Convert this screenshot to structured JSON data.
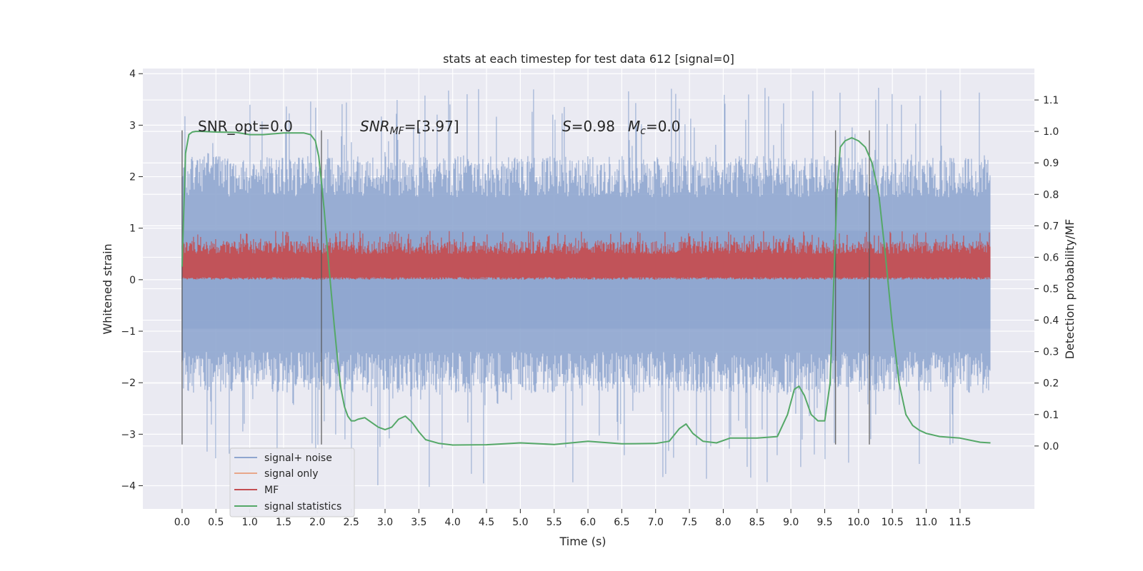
{
  "chart_data": {
    "type": "line",
    "title": "stats at each timestep for test data 612 [signal=0]",
    "xlabel": "Time (s)",
    "ylabel": "Whitened strain",
    "y2label": "Detection probability/MF",
    "xlim": [
      -0.58,
      12.6
    ],
    "ylim": [
      -4.45,
      4.1
    ],
    "y2lim": [
      -0.2,
      1.2
    ],
    "xticks": [
      0.0,
      0.5,
      1.0,
      1.5,
      2.0,
      2.5,
      3.0,
      3.5,
      4.0,
      4.5,
      5.0,
      5.5,
      6.0,
      6.5,
      7.0,
      7.5,
      8.0,
      8.5,
      9.0,
      9.5,
      10.0,
      10.5,
      11.0,
      11.5
    ],
    "xtick_labels": [
      "0.0",
      "0.5",
      "1.0",
      "1.5",
      "2.0",
      "2.5",
      "3.0",
      "3.5",
      "4.0",
      "4.5",
      "5.0",
      "5.5",
      "6.0",
      "6.5",
      "7.0",
      "7.5",
      "8.0",
      "8.5",
      "9.0",
      "9.5",
      "10.0",
      "10.5",
      "11.0",
      "11.5"
    ],
    "yticks": [
      -4,
      -3,
      -2,
      -1,
      0,
      1,
      2,
      3,
      4
    ],
    "ytick_labels": [
      "−4",
      "−3",
      "−2",
      "−1",
      "0",
      "1",
      "2",
      "3",
      "4"
    ],
    "y2ticks": [
      0.0,
      0.1,
      0.2,
      0.3,
      0.4,
      0.5,
      0.6,
      0.7,
      0.8,
      0.9,
      1.0,
      1.1
    ],
    "y2tick_labels": [
      "0.0",
      "0.1",
      "0.2",
      "0.3",
      "0.4",
      "0.5",
      "0.6",
      "0.7",
      "0.8",
      "0.9",
      "1.0",
      "1.1"
    ],
    "grid": true,
    "legend_position": "lower-left",
    "annotations": {
      "snr_opt": "SNR_opt=0.0",
      "snr_mf_base": "SNR",
      "snr_mf_sub": "MF",
      "snr_mf_value": "=[3.97]",
      "s_symbol": "S",
      "s_value": "=0.98",
      "mc_symbol": "M",
      "mc_sub": "c",
      "mc_value": "=0.0"
    },
    "vertical_lines": [
      0.0,
      2.06,
      9.66,
      10.16
    ],
    "noise_band": {
      "x_range": [
        0.0,
        11.95
      ],
      "typical_range": [
        -1.4,
        1.6
      ],
      "max": 3.75,
      "min": -4.05
    },
    "mf_band": {
      "x_range": [
        0.0,
        11.95
      ],
      "typical_range": [
        0.05,
        0.7
      ],
      "max": 0.95
    },
    "series": [
      {
        "name": "signal statistics",
        "axis": "right",
        "x": [
          0.0,
          0.05,
          0.1,
          0.15,
          0.2,
          0.3,
          0.5,
          0.8,
          1.0,
          1.2,
          1.5,
          1.8,
          1.9,
          1.97,
          2.02,
          2.05,
          2.1,
          2.15,
          2.2,
          2.25,
          2.3,
          2.35,
          2.4,
          2.45,
          2.5,
          2.55,
          2.6,
          2.7,
          2.8,
          2.9,
          3.0,
          3.1,
          3.2,
          3.3,
          3.4,
          3.5,
          3.6,
          3.8,
          4.0,
          4.5,
          5.0,
          5.5,
          6.0,
          6.5,
          7.0,
          7.2,
          7.35,
          7.45,
          7.55,
          7.7,
          7.9,
          8.1,
          8.5,
          8.8,
          8.95,
          9.05,
          9.12,
          9.2,
          9.3,
          9.4,
          9.5,
          9.58,
          9.63,
          9.68,
          9.73,
          9.8,
          9.9,
          10.0,
          10.1,
          10.2,
          10.3,
          10.4,
          10.5,
          10.6,
          10.7,
          10.8,
          10.9,
          11.0,
          11.2,
          11.5,
          11.8,
          11.95
        ],
        "y": [
          0.57,
          0.93,
          0.99,
          0.998,
          1.0,
          1.0,
          0.998,
          0.997,
          0.99,
          0.99,
          0.995,
          0.995,
          0.99,
          0.97,
          0.92,
          0.86,
          0.75,
          0.62,
          0.5,
          0.38,
          0.27,
          0.18,
          0.125,
          0.095,
          0.08,
          0.08,
          0.085,
          0.09,
          0.075,
          0.06,
          0.052,
          0.06,
          0.085,
          0.095,
          0.075,
          0.045,
          0.02,
          0.008,
          0.003,
          0.004,
          0.01,
          0.005,
          0.015,
          0.007,
          0.008,
          0.015,
          0.055,
          0.07,
          0.04,
          0.015,
          0.01,
          0.025,
          0.025,
          0.03,
          0.1,
          0.18,
          0.19,
          0.16,
          0.1,
          0.08,
          0.08,
          0.2,
          0.5,
          0.8,
          0.95,
          0.97,
          0.98,
          0.97,
          0.95,
          0.9,
          0.8,
          0.6,
          0.38,
          0.2,
          0.1,
          0.065,
          0.05,
          0.04,
          0.03,
          0.025,
          0.012,
          0.01
        ]
      },
      {
        "name": "signal+ noise",
        "axis": "left",
        "noise_band": true
      },
      {
        "name": "signal only",
        "axis": "left",
        "values": []
      },
      {
        "name": "MF",
        "axis": "left",
        "mf_band": true
      }
    ],
    "legend": [
      {
        "label": "signal+ noise",
        "color": "#8fa6cf"
      },
      {
        "label": "signal only",
        "color": "#e8a78b"
      },
      {
        "label": "MF",
        "color": "#c44e52"
      },
      {
        "label": "signal statistics",
        "color": "#55a868"
      }
    ],
    "colors": {
      "axes_bg": "#eaeaf2",
      "grid": "#ffffff",
      "noise": "#8fa6cf",
      "mf": "#c44e52",
      "stat": "#55a868",
      "vline": "#555555"
    }
  }
}
